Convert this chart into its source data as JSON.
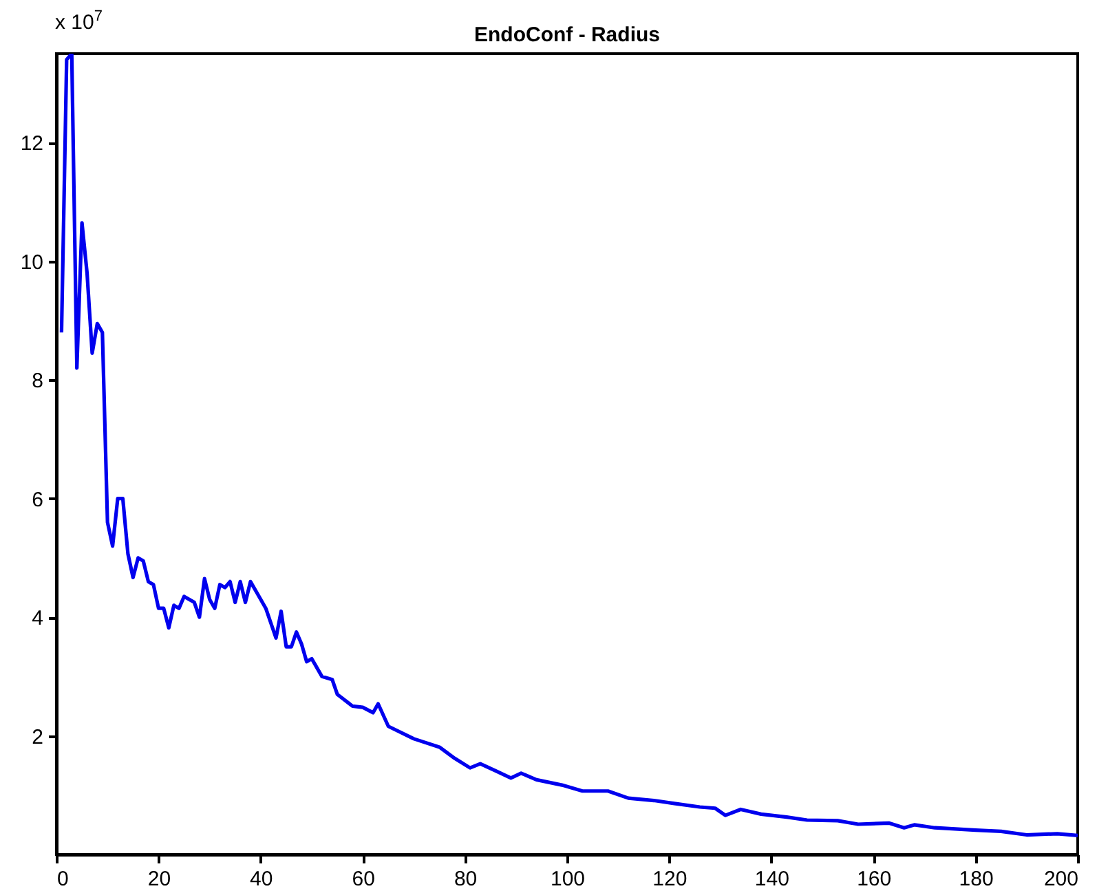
{
  "chart_data": {
    "type": "line",
    "title": "EndoConf - Radius",
    "annotations": [
      "x 10$^{7}$"
    ],
    "x": [
      1,
      2,
      3,
      4,
      5,
      6,
      7,
      8,
      9,
      10,
      11,
      12,
      13,
      14,
      15,
      16,
      17,
      18,
      19,
      20,
      21,
      22,
      23,
      24,
      25,
      26,
      27,
      28,
      29,
      30,
      31,
      32,
      33,
      34,
      35,
      36,
      37,
      38,
      39,
      40,
      41,
      42,
      43,
      44,
      45,
      46,
      47,
      48,
      49,
      50,
      52,
      54,
      55,
      58,
      60,
      62,
      63,
      65,
      70,
      75,
      78,
      81,
      83,
      86,
      89,
      91,
      94,
      99,
      103,
      108,
      112,
      117,
      121,
      126,
      129,
      131,
      134,
      138,
      143,
      147,
      153,
      157,
      163,
      166,
      168,
      172,
      180,
      185,
      190,
      196,
      200
    ],
    "series": [
      {
        "color": "#0000ee",
        "values": [
          8.8,
          13.4,
          13.5,
          8.2,
          10.65,
          9.8,
          8.45,
          8.95,
          8.8,
          5.6,
          5.2,
          6.0,
          6.0,
          5.07,
          4.67,
          5.0,
          4.95,
          4.6,
          4.55,
          4.15,
          4.15,
          3.82,
          4.2,
          4.15,
          4.35,
          4.3,
          4.25,
          4.0,
          4.65,
          4.3,
          4.15,
          4.55,
          4.5,
          4.6,
          4.25,
          4.6,
          4.25,
          4.6,
          4.45,
          4.3,
          4.15,
          3.9,
          3.65,
          4.1,
          3.5,
          3.5,
          3.75,
          3.55,
          3.25,
          3.3,
          3.0,
          2.95,
          2.7,
          2.5,
          2.48,
          2.39,
          2.54,
          2.16,
          1.95,
          1.81,
          1.62,
          1.46,
          1.53,
          1.41,
          1.29,
          1.37,
          1.26,
          1.17,
          1.07,
          1.07,
          0.95,
          0.91,
          0.86,
          0.8,
          0.78,
          0.66,
          0.76,
          0.68,
          0.63,
          0.58,
          0.57,
          0.51,
          0.53,
          0.45,
          0.5,
          0.45,
          0.41,
          0.39,
          0.33,
          0.35,
          0.32
        ]
      }
    ],
    "xlim": [
      0,
      200
    ],
    "xticks": [
      0,
      20,
      40,
      60,
      80,
      100,
      120,
      140,
      160,
      180,
      200
    ],
    "ylim": [
      0,
      13.5
    ],
    "yticks": [
      2,
      4,
      6,
      8,
      10,
      12
    ],
    "grid": false,
    "marker": "none",
    "line_style": "solid"
  }
}
